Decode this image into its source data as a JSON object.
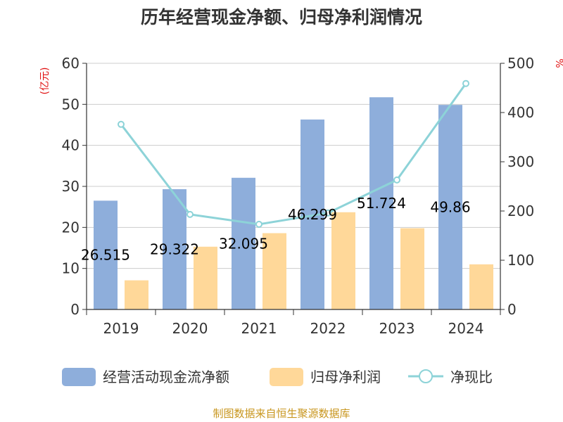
{
  "chart_data": {
    "type": "bar",
    "title": "历年经营现金净额、归母净利润情况",
    "categories": [
      "2019",
      "2020",
      "2021",
      "2022",
      "2023",
      "2024"
    ],
    "y_left": {
      "unit": "(亿元)",
      "ylim": [
        0,
        60
      ],
      "ticks": [
        0,
        10,
        20,
        30,
        40,
        50,
        60
      ]
    },
    "y_right": {
      "unit": "%",
      "ylim": [
        0,
        500
      ],
      "ticks": [
        0,
        100,
        200,
        300,
        400,
        500
      ]
    },
    "series": [
      {
        "name": "经营活动现金流净额",
        "type": "bar",
        "axis": "left",
        "color": "#8eaedb",
        "values": [
          26.515,
          29.322,
          32.095,
          46.299,
          51.724,
          49.86
        ],
        "labels": [
          "26.515",
          "29.322",
          "32.095",
          "46.299",
          "51.724",
          "49.86"
        ]
      },
      {
        "name": "归母净利润",
        "type": "bar",
        "axis": "left",
        "color": "#ffd899",
        "values": [
          7.1,
          15.3,
          18.6,
          23.7,
          19.8,
          11.0
        ]
      },
      {
        "name": "净现比",
        "type": "line",
        "axis": "right",
        "color": "#8dd3d8",
        "values": [
          376,
          193,
          173,
          196,
          263,
          459
        ]
      }
    ],
    "grid": true,
    "legend_position": "bottom"
  },
  "source": "制图数据来自恒生聚源数据库"
}
